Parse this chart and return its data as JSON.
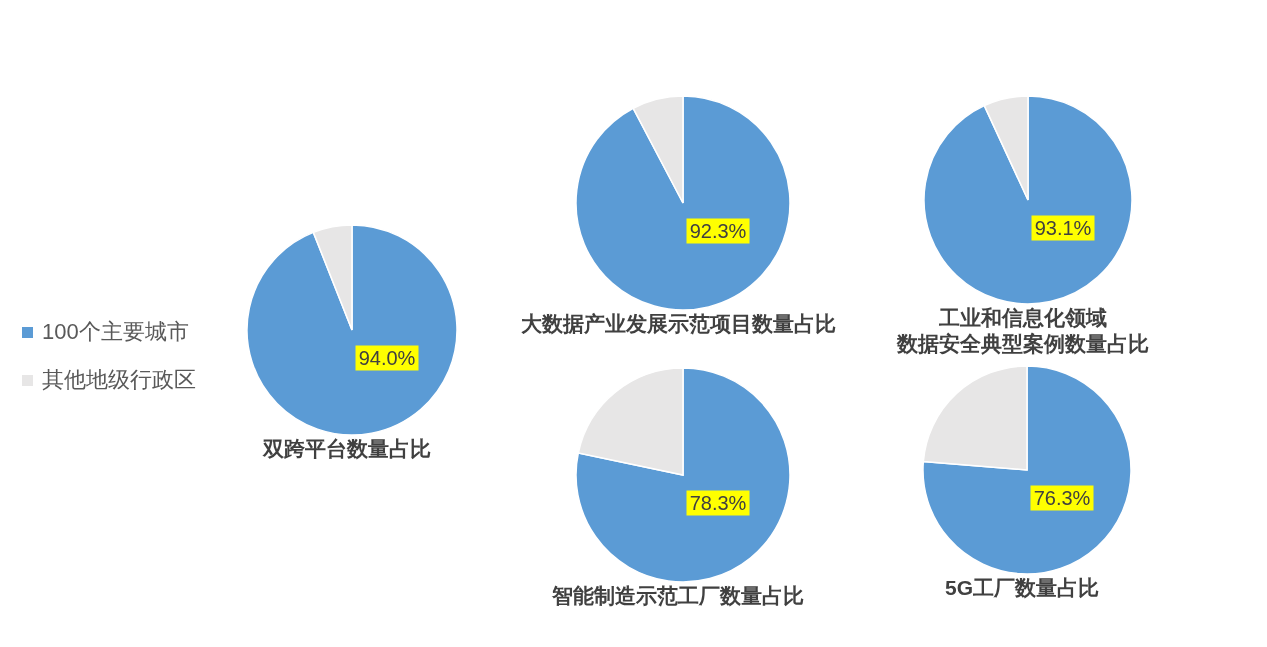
{
  "chart_data": [
    {
      "type": "pie",
      "title": "双跨平台数量占比",
      "categories": [
        "100个主要城市",
        "其他地级行政区"
      ],
      "values": [
        94.0,
        6.0
      ],
      "colors": [
        "#5b9bd5",
        "#e7e6e6"
      ],
      "value_labels": [
        "94.0%",
        null
      ],
      "legend": "left"
    },
    {
      "type": "pie",
      "title": "大数据产业发展示范项目数量占比",
      "categories": [
        null,
        null
      ],
      "values": [
        92.3,
        7.7
      ],
      "colors": [
        "#5b9bd5",
        "#e7e6e6"
      ],
      "value_labels": [
        "92.3%",
        null
      ]
    },
    {
      "type": "pie",
      "title": "工业和信息化领域数据安全典型案例数量占比",
      "categories": [
        null,
        null
      ],
      "values": [
        93.1,
        6.9
      ],
      "colors": [
        "#5b9bd5",
        "#e7e6e6"
      ],
      "value_labels": [
        "93.1%",
        null
      ]
    },
    {
      "type": "pie",
      "title": "智能制造示范工厂数量占比",
      "categories": [
        null,
        null
      ],
      "values": [
        78.3,
        21.7
      ],
      "colors": [
        "#5b9bd5",
        "#e7e6e6"
      ],
      "value_labels": [
        "78.3%",
        null
      ]
    },
    {
      "type": "pie",
      "title": "5G工厂数量占比",
      "categories": [
        null,
        null
      ],
      "values": [
        76.3,
        23.7
      ],
      "colors": [
        "#5b9bd5",
        "#e7e6e6"
      ],
      "value_labels": [
        "76.3%",
        null
      ]
    }
  ]
}
